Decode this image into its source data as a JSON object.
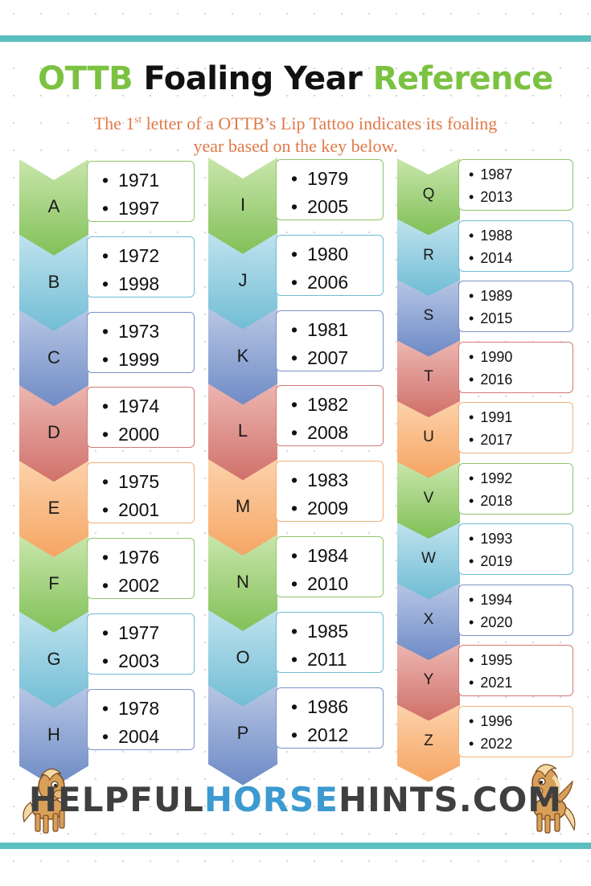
{
  "title": {
    "part1": "OTTB",
    "part2": "Foaling Year",
    "part3": "Reference"
  },
  "subtitle": {
    "line1_pre": "The 1",
    "line1_sup": "st",
    "line1_post": " letter of a OTTB’s Lip Tattoo indicates its foaling",
    "line2": "year based on the key below."
  },
  "columns": [
    [
      {
        "letter": "A",
        "years": [
          "1971",
          "1997"
        ],
        "color": "green"
      },
      {
        "letter": "B",
        "years": [
          "1972",
          "1998"
        ],
        "color": "blue"
      },
      {
        "letter": "C",
        "years": [
          "1973",
          "1999"
        ],
        "color": "navy"
      },
      {
        "letter": "D",
        "years": [
          "1974",
          "2000"
        ],
        "color": "red"
      },
      {
        "letter": "E",
        "years": [
          "1975",
          "2001"
        ],
        "color": "orange"
      },
      {
        "letter": "F",
        "years": [
          "1976",
          "2002"
        ],
        "color": "green"
      },
      {
        "letter": "G",
        "years": [
          "1977",
          "2003"
        ],
        "color": "blue"
      },
      {
        "letter": "H",
        "years": [
          "1978",
          "2004"
        ],
        "color": "navy"
      }
    ],
    [
      {
        "letter": "I",
        "years": [
          "1979",
          "2005"
        ],
        "color": "green"
      },
      {
        "letter": "J",
        "years": [
          "1980",
          "2006"
        ],
        "color": "blue"
      },
      {
        "letter": "K",
        "years": [
          "1981",
          "2007"
        ],
        "color": "navy"
      },
      {
        "letter": "L",
        "years": [
          "1982",
          "2008"
        ],
        "color": "red"
      },
      {
        "letter": "M",
        "years": [
          "1983",
          "2009"
        ],
        "color": "orange"
      },
      {
        "letter": "N",
        "years": [
          "1984",
          "2010"
        ],
        "color": "green"
      },
      {
        "letter": "O",
        "years": [
          "1985",
          "2011"
        ],
        "color": "blue"
      },
      {
        "letter": "P",
        "years": [
          "1986",
          "2012"
        ],
        "color": "navy"
      }
    ],
    [
      {
        "letter": "Q",
        "years": [
          "1987",
          "2013"
        ],
        "color": "green"
      },
      {
        "letter": "R",
        "years": [
          "1988",
          "2014"
        ],
        "color": "blue"
      },
      {
        "letter": "S",
        "years": [
          "1989",
          "2015"
        ],
        "color": "navy"
      },
      {
        "letter": "T",
        "years": [
          "1990",
          "2016"
        ],
        "color": "red"
      },
      {
        "letter": "U",
        "years": [
          "1991",
          "2017"
        ],
        "color": "orange"
      },
      {
        "letter": "V",
        "years": [
          "1992",
          "2018"
        ],
        "color": "green"
      },
      {
        "letter": "W",
        "years": [
          "1993",
          "2019"
        ],
        "color": "blue"
      },
      {
        "letter": "X",
        "years": [
          "1994",
          "2020"
        ],
        "color": "navy"
      },
      {
        "letter": "Y",
        "years": [
          "1995",
          "2021"
        ],
        "color": "red"
      },
      {
        "letter": "Z",
        "years": [
          "1996",
          "2022"
        ],
        "color": "orange"
      }
    ]
  ],
  "brand": {
    "part1": "HELPFUL",
    "part2": "HORSE",
    "part3": "HINTS.COM"
  },
  "colors": {
    "teal_bar": "#5bbfbf",
    "title_green": "#7cc242",
    "subtitle_orange": "#e07a4a",
    "brand_blue": "#3c9ad0",
    "brand_dark": "#3f3f3f"
  }
}
